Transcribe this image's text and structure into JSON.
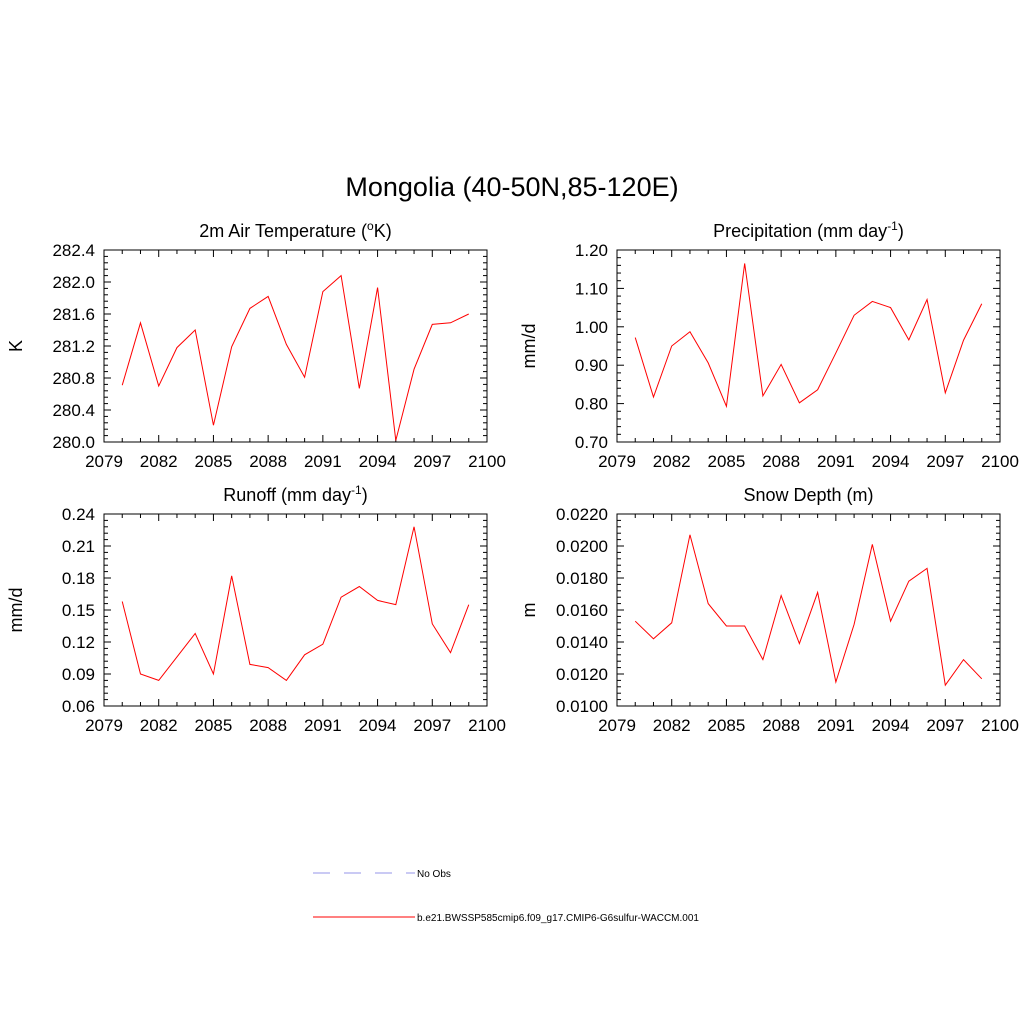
{
  "figure": {
    "title": "Mongolia (40-50N,85-120E)"
  },
  "chart_data": [
    {
      "type": "line",
      "title": "2m Air Temperature",
      "title_unit": "K",
      "xlabel": "",
      "ylabel": "K",
      "xlim": [
        2079,
        2100
      ],
      "ylim": [
        280.0,
        282.4
      ],
      "xticks": [
        "2079",
        "2082",
        "2085",
        "2088",
        "2091",
        "2094",
        "2097",
        "2100"
      ],
      "yticks": [
        "280.0",
        "280.4",
        "280.8",
        "281.2",
        "281.6",
        "282.0",
        "282.4"
      ],
      "x": [
        2080,
        2081,
        2082,
        2083,
        2084,
        2085,
        2086,
        2087,
        2088,
        2089,
        2090,
        2091,
        2092,
        2093,
        2094,
        2095,
        2096,
        2097,
        2098,
        2099
      ],
      "series": [
        {
          "name": "b.e21.BWSSP585cmip6.f09_g17.CMIP6-G6sulfur-WACCM.001",
          "values": [
            280.71,
            281.49,
            280.7,
            281.18,
            281.4,
            280.21,
            281.19,
            281.67,
            281.82,
            281.22,
            280.81,
            281.88,
            282.08,
            280.67,
            281.93,
            280.02,
            280.91,
            281.47,
            281.49,
            281.6
          ]
        }
      ],
      "color": "#ff0000"
    },
    {
      "type": "line",
      "title": "Precipitation (mm day",
      "title_sup": "-1",
      "title_end": ")",
      "xlabel": "",
      "ylabel": "mm/d",
      "xlim": [
        2079,
        2100
      ],
      "ylim": [
        0.7,
        1.2
      ],
      "xticks": [
        "2079",
        "2082",
        "2085",
        "2088",
        "2091",
        "2094",
        "2097",
        "2100"
      ],
      "yticks": [
        "0.70",
        "0.80",
        "0.90",
        "1.00",
        "1.10",
        "1.20"
      ],
      "x": [
        2080,
        2081,
        2082,
        2083,
        2084,
        2085,
        2086,
        2087,
        2088,
        2089,
        2090,
        2091,
        2092,
        2093,
        2094,
        2095,
        2096,
        2097,
        2098,
        2099
      ],
      "series": [
        {
          "name": "b.e21.BWSSP585cmip6.f09_g17.CMIP6-G6sulfur-WACCM.001",
          "values": [
            0.972,
            0.817,
            0.95,
            0.987,
            0.906,
            0.793,
            1.165,
            0.82,
            0.902,
            0.802,
            0.836,
            0.932,
            1.03,
            1.066,
            1.05,
            0.966,
            1.071,
            0.828,
            0.965,
            1.06
          ]
        }
      ],
      "color": "#ff0000"
    },
    {
      "type": "line",
      "title": "Runoff (mm day",
      "title_sup": "-1",
      "title_end": ")",
      "xlabel": "",
      "ylabel": "mm/d",
      "xlim": [
        2079,
        2100
      ],
      "ylim": [
        0.06,
        0.24
      ],
      "xticks": [
        "2079",
        "2082",
        "2085",
        "2088",
        "2091",
        "2094",
        "2097",
        "2100"
      ],
      "yticks": [
        "0.06",
        "0.09",
        "0.12",
        "0.15",
        "0.18",
        "0.21",
        "0.24"
      ],
      "x": [
        2080,
        2081,
        2082,
        2083,
        2084,
        2085,
        2086,
        2087,
        2088,
        2089,
        2090,
        2091,
        2092,
        2093,
        2094,
        2095,
        2096,
        2097,
        2098,
        2099
      ],
      "series": [
        {
          "name": "b.e21.BWSSP585cmip6.f09_g17.CMIP6-G6sulfur-WACCM.001",
          "values": [
            0.158,
            0.09,
            0.084,
            0.106,
            0.128,
            0.09,
            0.182,
            0.099,
            0.096,
            0.084,
            0.108,
            0.118,
            0.162,
            0.172,
            0.159,
            0.155,
            0.228,
            0.137,
            0.11,
            0.155
          ]
        }
      ],
      "color": "#ff0000"
    },
    {
      "type": "line",
      "title": "Snow Depth (m)",
      "xlabel": "",
      "ylabel": "m",
      "xlim": [
        2079,
        2100
      ],
      "ylim": [
        0.01,
        0.022
      ],
      "xticks": [
        "2079",
        "2082",
        "2085",
        "2088",
        "2091",
        "2094",
        "2097",
        "2100"
      ],
      "yticks": [
        "0.0100",
        "0.0120",
        "0.0140",
        "0.0160",
        "0.0180",
        "0.0200",
        "0.0220"
      ],
      "x": [
        2080,
        2081,
        2082,
        2083,
        2084,
        2085,
        2086,
        2087,
        2088,
        2089,
        2090,
        2091,
        2092,
        2093,
        2094,
        2095,
        2096,
        2097,
        2098,
        2099
      ],
      "series": [
        {
          "name": "b.e21.BWSSP585cmip6.f09_g17.CMIP6-G6sulfur-WACCM.001",
          "values": [
            0.0153,
            0.0142,
            0.0152,
            0.0207,
            0.0164,
            0.015,
            0.015,
            0.0129,
            0.0169,
            0.0139,
            0.0171,
            0.0115,
            0.0151,
            0.0201,
            0.0153,
            0.0178,
            0.0186,
            0.0113,
            0.0129,
            0.0117
          ]
        }
      ],
      "color": "#ff0000"
    }
  ],
  "legend": {
    "items": [
      {
        "label": "No Obs",
        "style": "dashed",
        "color": "#aaaaee"
      },
      {
        "label": "b.e21.BWSSP585cmip6.f09_g17.CMIP6-G6sulfur-WACCM.001",
        "style": "solid",
        "color": "#ff0000"
      }
    ]
  }
}
